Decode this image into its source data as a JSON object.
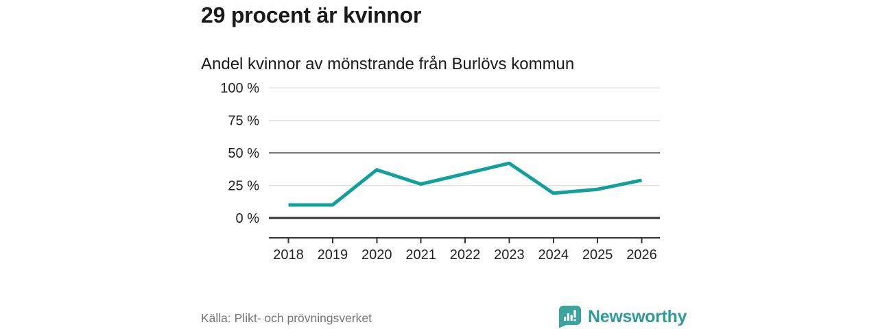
{
  "header": {
    "title": "29 procent är kvinnor",
    "subtitle": "Andel kvinnor av mönstrande från Burlövs kommun"
  },
  "chart_data": {
    "type": "line",
    "title": "Andel kvinnor av mönstrande från Burlövs kommun",
    "categories": [
      "2018",
      "2019",
      "2020",
      "2021",
      "2022",
      "2023",
      "2024",
      "2025",
      "2026"
    ],
    "series": [
      {
        "name": "Andel kvinnor av mönstrande",
        "values": [
          10,
          10,
          37,
          26,
          34,
          42,
          19,
          22,
          29
        ],
        "color": "#12A09D"
      }
    ],
    "unit": "%",
    "ylim": [
      0,
      100
    ],
    "y_ticks": [
      {
        "value": 0,
        "label": "0 %",
        "style": "zero"
      },
      {
        "value": 25,
        "label": "25 %",
        "style": "light"
      },
      {
        "value": 50,
        "label": "50 %",
        "style": "strong"
      },
      {
        "value": 75,
        "label": "75 %",
        "style": "light"
      },
      {
        "value": 100,
        "label": "100 %",
        "style": "light"
      }
    ],
    "grid": true,
    "legend": "none"
  },
  "footer": {
    "source": "Källa: Plikt- och prövningsverket",
    "brand": "Newsworthy",
    "brand_icon": "newsworthy-speech-bubble-bar-chart-icon"
  },
  "colors": {
    "text": "#1A1A1A",
    "muted_text": "#767676",
    "axis_text": "#222222",
    "line": "#12A09D",
    "grid_light": "#E2E2E2",
    "grid_strong": "#757575",
    "axis": "#333333",
    "brand_teal": "#2F9C99",
    "brand_icon_fill": "#3AA49F",
    "background": "#FFFFFF"
  }
}
